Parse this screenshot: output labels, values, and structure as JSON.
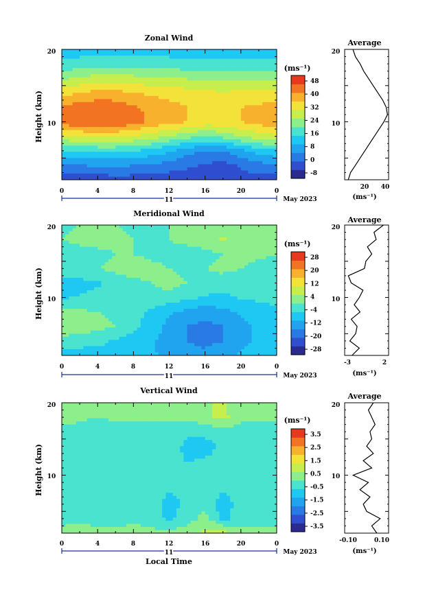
{
  "colors": {
    "scale": [
      "#2b2a8f",
      "#2f4fd0",
      "#2a7ae6",
      "#20a4f0",
      "#1fc8f2",
      "#49e3cf",
      "#8cef8c",
      "#c6ef4e",
      "#f3e23a",
      "#f7b12c",
      "#f27322",
      "#e53a1e"
    ]
  },
  "panels": [
    {
      "title": "Zonal Wind",
      "unit": "(ms⁻¹)",
      "ylabel": "Height (km)",
      "yticks": [
        "20",
        "10"
      ],
      "xticks": [
        "0",
        "4",
        "8",
        "12",
        "16",
        "20",
        "0"
      ],
      "day": "11",
      "date": "May 2023",
      "xlabel": "",
      "colorbar": [
        "48",
        "40",
        "32",
        "24",
        "16",
        "8",
        "0",
        "-8"
      ],
      "avg_title": "Average",
      "avg_yticks": [
        "20",
        "10"
      ],
      "avg_xticks": [
        "20",
        "40"
      ],
      "avg_unit": "(ms⁻¹)"
    },
    {
      "title": "Meridional Wind",
      "unit": "(ms⁻¹)",
      "ylabel": "Height (km)",
      "yticks": [
        "20",
        "10"
      ],
      "xticks": [
        "0",
        "4",
        "8",
        "12",
        "16",
        "20",
        "0"
      ],
      "day": "11",
      "date": "May 2023",
      "xlabel": "",
      "colorbar": [
        "28",
        "20",
        "12",
        "4",
        "-4",
        "-12",
        "-20",
        "-28"
      ],
      "avg_title": "Average",
      "avg_yticks": [
        "20",
        "10"
      ],
      "avg_xticks": [
        "-3",
        "2"
      ],
      "avg_unit": "(ms⁻¹)"
    },
    {
      "title": "Vertical Wind",
      "unit": "(ms⁻¹)",
      "ylabel": "Height (km)",
      "yticks": [
        "20",
        "10"
      ],
      "xticks": [
        "0",
        "4",
        "8",
        "12",
        "16",
        "20",
        "0"
      ],
      "day": "11",
      "date": "May 2023",
      "xlabel": "Local Time",
      "colorbar": [
        "3.5",
        "2.5",
        "1.5",
        "0.5",
        "-0.5",
        "-1.5",
        "-2.5",
        "-3.5"
      ],
      "avg_title": "Average",
      "avg_yticks": [
        "20",
        "10"
      ],
      "avg_xticks": [
        "-0.10",
        "0.10"
      ],
      "avg_unit": "(ms⁻¹)"
    }
  ],
  "chart_data": [
    {
      "type": "heatmap",
      "title": "Zonal Wind",
      "xlabel": "",
      "ylabel": "Height (km)",
      "xlim": [
        0,
        24
      ],
      "ylim": [
        2,
        20
      ],
      "clim": [
        -12,
        52
      ],
      "x": [
        0,
        2,
        4,
        6,
        8,
        10,
        12,
        14,
        16,
        18,
        20,
        22,
        24
      ],
      "y": [
        2,
        4,
        6,
        8,
        10,
        12,
        14,
        16,
        18,
        20
      ],
      "z": [
        [
          -6,
          -5,
          -5,
          -4,
          -4,
          -5,
          -5,
          -6,
          -5,
          -4,
          -3,
          -3,
          -4
        ],
        [
          4,
          4,
          5,
          5,
          4,
          3,
          2,
          0,
          -2,
          -3,
          -1,
          2,
          3
        ],
        [
          14,
          15,
          16,
          16,
          15,
          13,
          10,
          6,
          4,
          4,
          8,
          12,
          14
        ],
        [
          30,
          31,
          32,
          32,
          30,
          28,
          25,
          22,
          20,
          22,
          26,
          28,
          30
        ],
        [
          44,
          46,
          47,
          46,
          44,
          40,
          38,
          36,
          34,
          34,
          36,
          38,
          40
        ],
        [
          42,
          44,
          45,
          44,
          42,
          40,
          38,
          36,
          35,
          35,
          36,
          37,
          38
        ],
        [
          34,
          36,
          38,
          38,
          36,
          35,
          34,
          33,
          32,
          31,
          32,
          32,
          33
        ],
        [
          24,
          26,
          28,
          28,
          27,
          26,
          26,
          25,
          24,
          24,
          24,
          24,
          24
        ],
        [
          16,
          17,
          18,
          18,
          18,
          17,
          17,
          16,
          16,
          16,
          16,
          16,
          16
        ],
        [
          12,
          12,
          12,
          12,
          12,
          12,
          12,
          12,
          12,
          12,
          12,
          12,
          12
        ]
      ],
      "average_profile": {
        "xlim": [
          5,
          42
        ],
        "height": [
          2,
          3,
          4,
          5,
          6,
          7,
          8,
          9,
          10,
          11,
          12,
          13,
          14,
          15,
          16,
          17,
          18,
          19,
          20
        ],
        "values": [
          8,
          10,
          14,
          18,
          22,
          26,
          30,
          34,
          38,
          41,
          40,
          37,
          33,
          29,
          25,
          21,
          18,
          14,
          12
        ]
      }
    },
    {
      "type": "heatmap",
      "title": "Meridional Wind",
      "xlabel": "",
      "ylabel": "Height (km)",
      "xlim": [
        0,
        24
      ],
      "ylim": [
        2,
        20
      ],
      "clim": [
        -32,
        32
      ],
      "x": [
        0,
        2,
        4,
        6,
        8,
        10,
        12,
        14,
        16,
        18,
        20,
        22,
        24
      ],
      "y": [
        2,
        4,
        6,
        8,
        10,
        12,
        14,
        16,
        18,
        20
      ],
      "z": [
        [
          -8,
          -8,
          -7,
          -8,
          -9,
          -10,
          -12,
          -14,
          -14,
          -12,
          -10,
          -9,
          -8
        ],
        [
          -2,
          -3,
          -4,
          -6,
          -8,
          -10,
          -13,
          -16,
          -18,
          -16,
          -12,
          -10,
          -8
        ],
        [
          4,
          3,
          2,
          0,
          -4,
          -8,
          -12,
          -16,
          -18,
          -16,
          -12,
          -10,
          -8
        ],
        [
          2,
          1,
          0,
          -2,
          -4,
          -6,
          -10,
          -12,
          -14,
          -12,
          -10,
          -8,
          -6
        ],
        [
          -6,
          -5,
          -4,
          -4,
          -3,
          -2,
          -2,
          -4,
          -6,
          -6,
          -5,
          -4,
          -4
        ],
        [
          -8,
          -7,
          -6,
          -4,
          -2,
          0,
          2,
          0,
          -2,
          -4,
          -5,
          -4,
          -4
        ],
        [
          -2,
          -1,
          0,
          2,
          4,
          2,
          0,
          -2,
          0,
          2,
          0,
          -2,
          -2
        ],
        [
          -4,
          -3,
          -2,
          0,
          0,
          -2,
          -2,
          -3,
          -2,
          0,
          2,
          1,
          0
        ],
        [
          0,
          2,
          3,
          1,
          0,
          -1,
          0,
          2,
          4,
          6,
          4,
          2,
          2
        ],
        [
          -2,
          0,
          2,
          0,
          -1,
          -2,
          0,
          2,
          4,
          3,
          2,
          0,
          0
        ]
      ],
      "average_profile": {
        "xlim": [
          -3.5,
          2.5
        ],
        "height": [
          2,
          3,
          4,
          5,
          6,
          7,
          8,
          9,
          10,
          11,
          12,
          13,
          14,
          15,
          16,
          17,
          18,
          19,
          20
        ],
        "values": [
          -2.5,
          -1.5,
          -2.8,
          -2.0,
          -1.8,
          -2.6,
          -1.4,
          -2.2,
          -1.5,
          -1.0,
          -2.6,
          -3.0,
          -0.8,
          -0.6,
          0.2,
          -0.4,
          0.8,
          0.5,
          1.8
        ]
      }
    },
    {
      "type": "heatmap",
      "title": "Vertical Wind",
      "xlabel": "Local Time",
      "ylabel": "Height (km)",
      "xlim": [
        0,
        24
      ],
      "ylim": [
        2,
        20
      ],
      "clim": [
        -4,
        4
      ],
      "x": [
        0,
        2,
        4,
        6,
        8,
        10,
        12,
        14,
        16,
        18,
        20,
        22,
        24
      ],
      "y": [
        2,
        4,
        6,
        8,
        10,
        12,
        14,
        16,
        18,
        20
      ],
      "z": [
        [
          0.2,
          0.3,
          0.1,
          0.2,
          0.3,
          0.2,
          0.1,
          0.5,
          0.8,
          1.0,
          0.2,
          0.1,
          0.1
        ],
        [
          -0.2,
          -0.1,
          -0.2,
          -0.3,
          -0.2,
          -0.3,
          -0.8,
          -0.4,
          0.3,
          -0.9,
          -0.3,
          -0.2,
          -0.1
        ],
        [
          -0.4,
          -0.3,
          -0.5,
          -0.4,
          -0.3,
          -0.4,
          -0.9,
          -0.5,
          -0.2,
          -1.0,
          -0.4,
          -0.3,
          -0.3
        ],
        [
          -0.5,
          -0.4,
          -0.4,
          -0.5,
          -0.4,
          -0.5,
          -0.6,
          -0.6,
          -0.4,
          -0.6,
          -0.5,
          -0.4,
          -0.4
        ],
        [
          -0.4,
          -0.4,
          -0.3,
          -0.4,
          -0.3,
          -0.4,
          -0.5,
          -0.5,
          -0.4,
          -0.5,
          -0.4,
          -0.4,
          -0.4
        ],
        [
          -0.4,
          -0.3,
          -0.4,
          -0.5,
          -0.4,
          -0.4,
          -0.5,
          -0.7,
          -0.6,
          -0.5,
          -0.4,
          -0.4,
          -0.3
        ],
        [
          -0.3,
          -0.3,
          -0.3,
          -0.4,
          -0.4,
          -0.3,
          -0.4,
          -0.8,
          -0.9,
          -0.5,
          -0.4,
          -0.3,
          -0.3
        ],
        [
          -0.2,
          -0.2,
          -0.3,
          -0.3,
          -0.3,
          -0.3,
          -0.3,
          -0.6,
          -0.5,
          -0.3,
          -0.3,
          -0.3,
          -0.2
        ],
        [
          0.2,
          0.1,
          0.0,
          0.1,
          0.2,
          0.1,
          0.1,
          0.2,
          0.5,
          0.9,
          0.2,
          0.1,
          0.1
        ],
        [
          0.1,
          0.1,
          0.1,
          0.1,
          0.1,
          0.1,
          0.1,
          0.2,
          0.6,
          0.8,
          0.1,
          0.1,
          0.1
        ]
      ],
      "average_profile": {
        "xlim": [
          -0.13,
          0.13
        ],
        "height": [
          2,
          3,
          4,
          5,
          6,
          7,
          8,
          9,
          10,
          11,
          12,
          13,
          14,
          15,
          16,
          17,
          18,
          19,
          20
        ],
        "values": [
          0.06,
          0.03,
          0.08,
          0.0,
          -0.02,
          0.02,
          -0.04,
          0.01,
          -0.08,
          0.03,
          -0.02,
          0.04,
          0.0,
          0.03,
          0.02,
          0.05,
          0.03,
          0.01,
          0.04
        ]
      }
    }
  ]
}
